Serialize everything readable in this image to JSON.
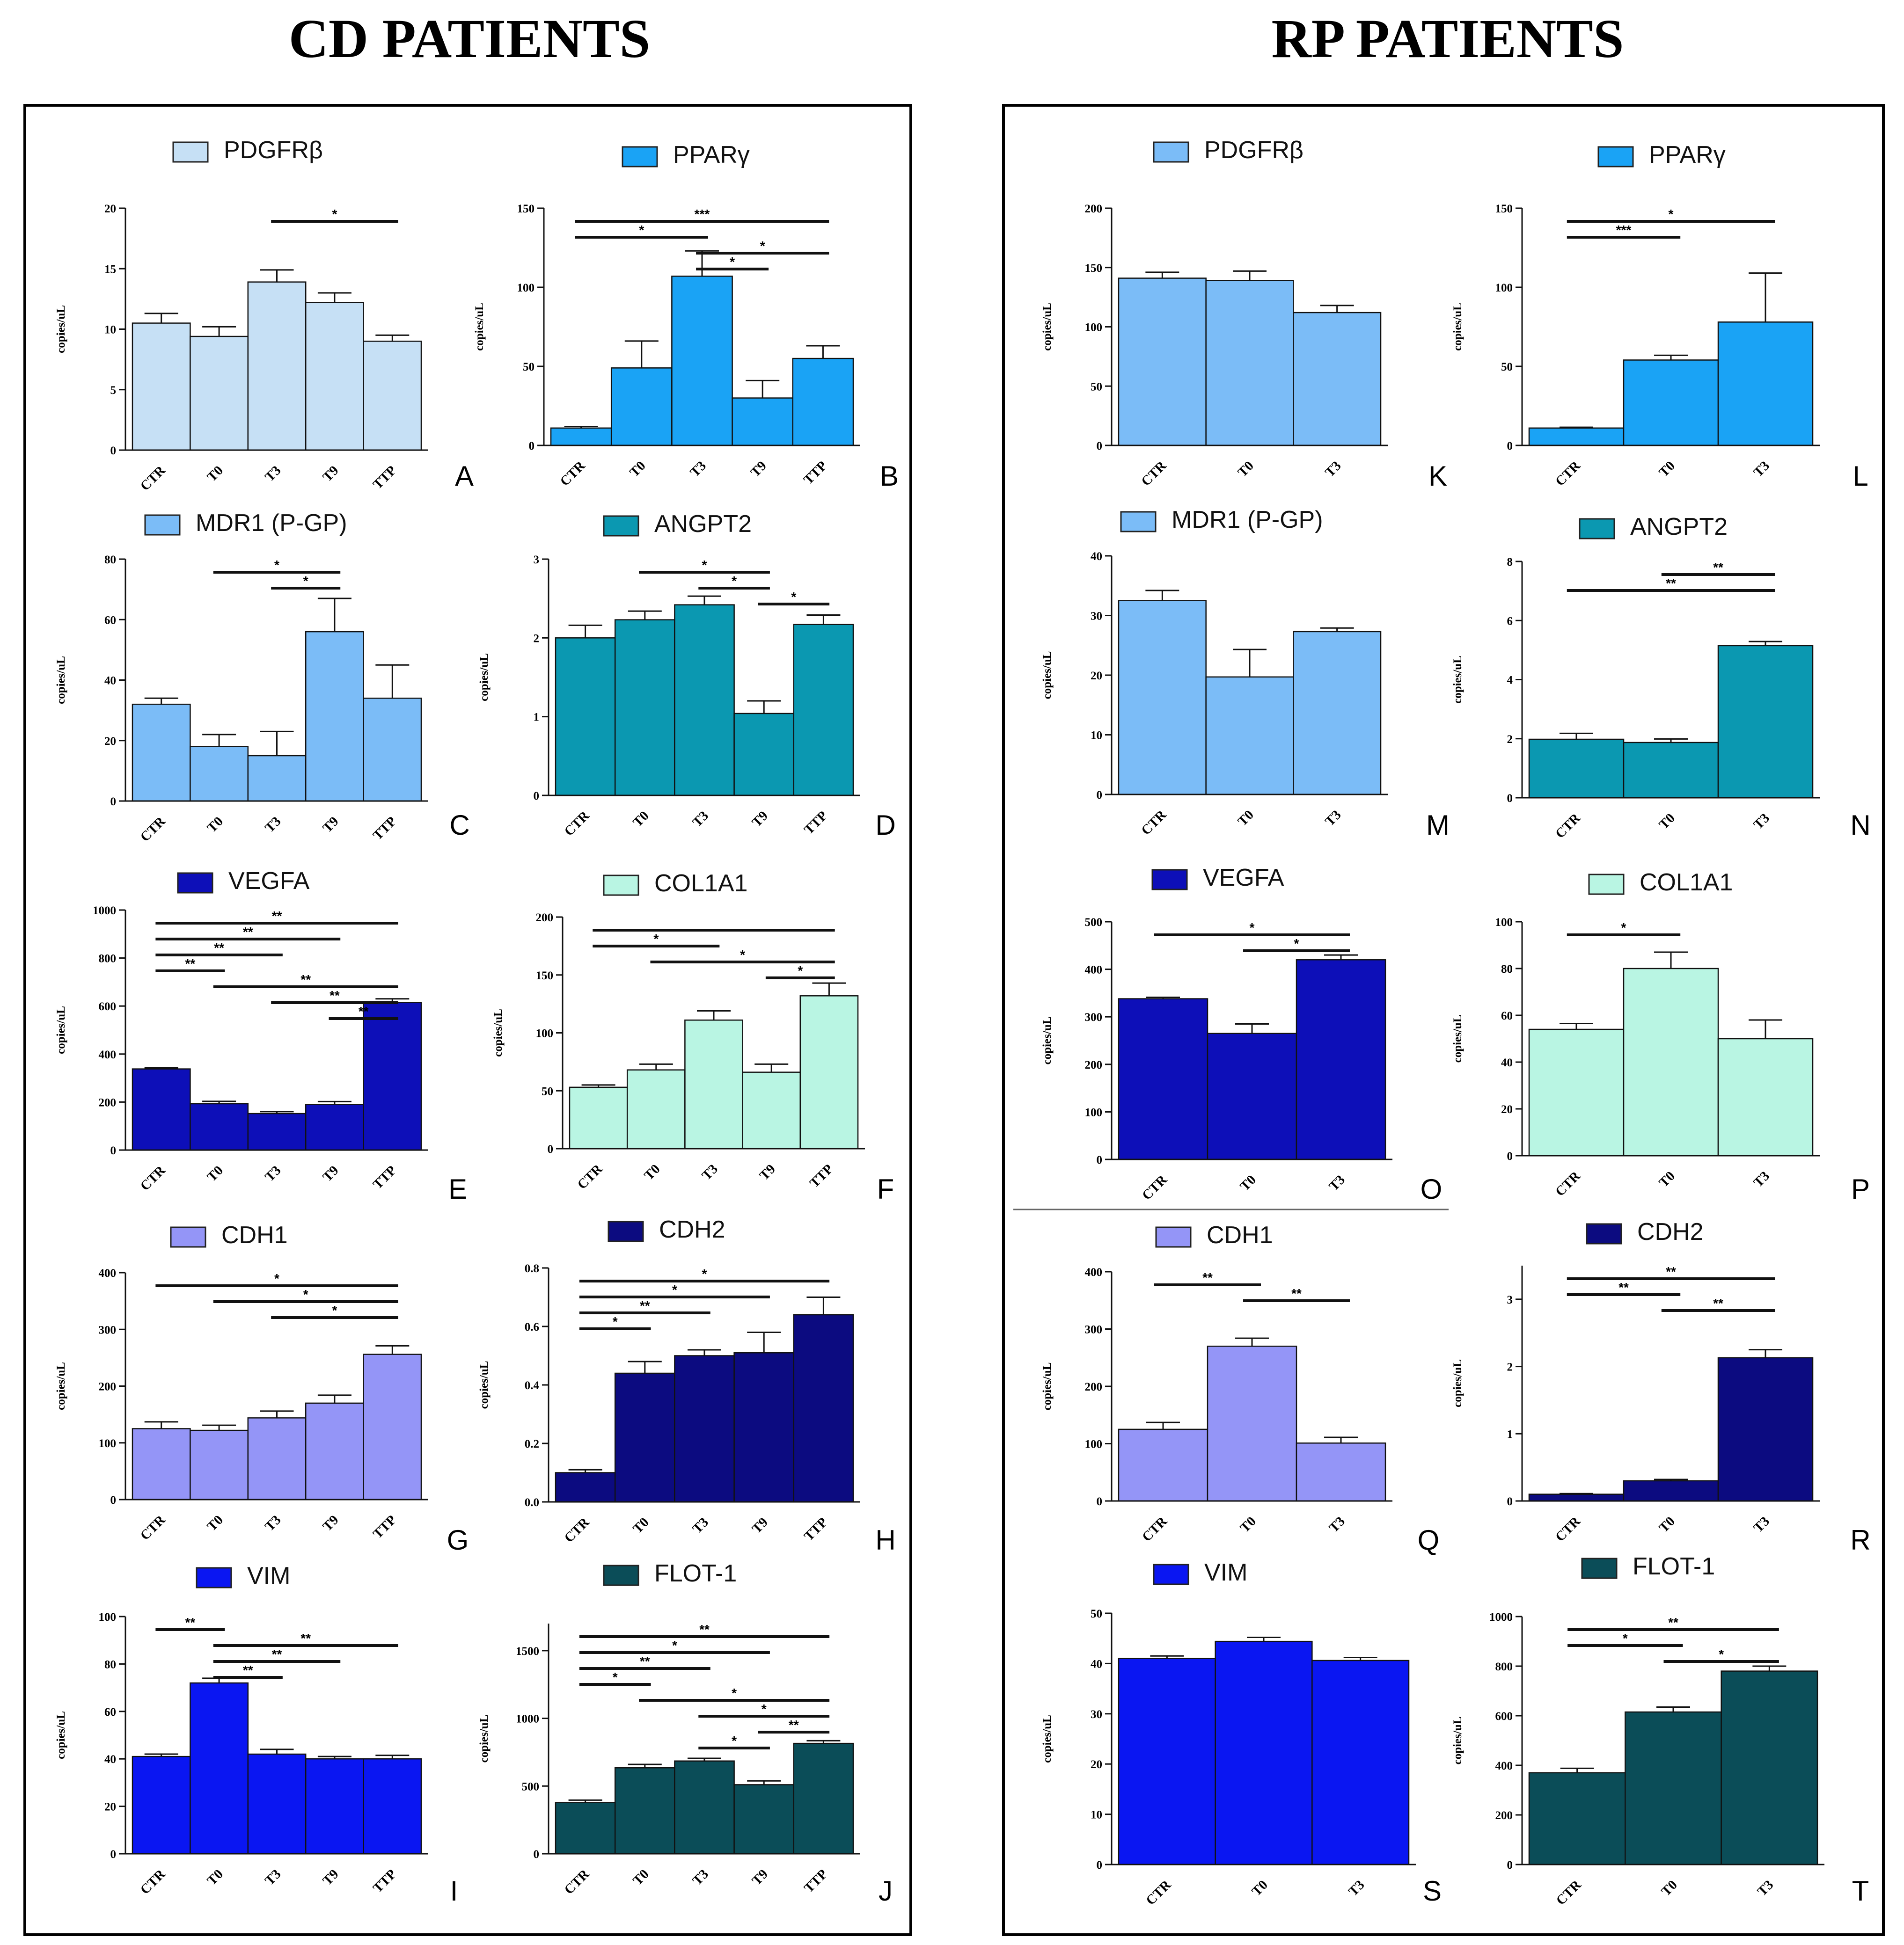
{
  "headings": {
    "left": "CD PATIENTS",
    "right": "RP PATIENTS"
  },
  "y_axis_label": "copies/uL",
  "chart_data": [
    {
      "id": "A",
      "type": "bar",
      "title": "PDGFRβ",
      "color": "#c6e0f5",
      "categories": [
        "CTR",
        "T0",
        "T3",
        "T9",
        "TTP"
      ],
      "values": [
        10.5,
        9.4,
        13.9,
        12.2,
        9.0
      ],
      "errors": [
        0.8,
        0.8,
        1.0,
        0.8,
        0.5
      ],
      "ylim": [
        0,
        20
      ],
      "yticks": [
        0,
        5,
        10,
        15,
        20
      ],
      "ylabel": "copies/uL",
      "sig": [
        {
          "from": 2,
          "to": 4,
          "label": "*"
        }
      ]
    },
    {
      "id": "B",
      "type": "bar",
      "title": "PPARγ",
      "color": "#1aa3f5",
      "categories": [
        "CTR",
        "T0",
        "T3",
        "T9",
        "TTP"
      ],
      "values": [
        11,
        49,
        107,
        30,
        55
      ],
      "errors": [
        1,
        17,
        16,
        11,
        8
      ],
      "ylim": [
        0,
        150
      ],
      "yticks": [
        0,
        50,
        100,
        150
      ],
      "ylabel": "copies/uL",
      "sig": [
        {
          "from": 0,
          "to": 4,
          "label": "***"
        },
        {
          "from": 0,
          "to": 2,
          "label": "*"
        },
        {
          "from": 2,
          "to": 4,
          "label": "*"
        },
        {
          "from": 2,
          "to": 3,
          "label": "*"
        }
      ]
    },
    {
      "id": "C",
      "type": "bar",
      "title": "MDR1 (P-GP)",
      "color": "#7bbcf7",
      "categories": [
        "CTR",
        "T0",
        "T3",
        "T9",
        "TTP"
      ],
      "values": [
        32,
        18,
        15,
        56,
        34
      ],
      "errors": [
        2,
        4,
        8,
        11,
        11
      ],
      "ylim": [
        0,
        80
      ],
      "yticks": [
        0,
        20,
        40,
        60,
        80
      ],
      "ylabel": "copies/uL",
      "sig": [
        {
          "from": 1,
          "to": 3,
          "label": "*"
        },
        {
          "from": 2,
          "to": 3,
          "label": "*"
        }
      ]
    },
    {
      "id": "D",
      "type": "bar",
      "title": "ANGPT2",
      "color": "#0b98b1",
      "categories": [
        "CTR",
        "T0",
        "T3",
        "T9",
        "TTP"
      ],
      "values": [
        2.0,
        2.23,
        2.42,
        1.04,
        2.17
      ],
      "errors": [
        0.16,
        0.11,
        0.11,
        0.16,
        0.12
      ],
      "ylim": [
        0,
        3
      ],
      "yticks": [
        0,
        1,
        2,
        3
      ],
      "ylabel": "copies/uL",
      "sig": [
        {
          "from": 1,
          "to": 3,
          "label": "*"
        },
        {
          "from": 2,
          "to": 3,
          "label": "*"
        },
        {
          "from": 3,
          "to": 4,
          "label": "*"
        }
      ]
    },
    {
      "id": "E",
      "type": "bar",
      "title": "VEGFA",
      "color": "#0d0fb8",
      "categories": [
        "CTR",
        "T0",
        "T3",
        "T9",
        "TTP"
      ],
      "values": [
        338,
        193,
        152,
        190,
        615
      ],
      "errors": [
        5,
        10,
        8,
        12,
        15
      ],
      "ylim": [
        0,
        1000
      ],
      "yticks": [
        0,
        200,
        400,
        600,
        800,
        1000
      ],
      "ylabel": "copies/uL",
      "sig": [
        {
          "from": 0,
          "to": 4,
          "label": "**"
        },
        {
          "from": 0,
          "to": 3,
          "label": "**"
        },
        {
          "from": 0,
          "to": 2,
          "label": "**"
        },
        {
          "from": 0,
          "to": 1,
          "label": "**"
        },
        {
          "from": 1,
          "to": 4,
          "label": "**"
        },
        {
          "from": 2,
          "to": 4,
          "label": "**"
        },
        {
          "from": 3,
          "to": 4,
          "label": "**"
        }
      ]
    },
    {
      "id": "F",
      "type": "bar",
      "title": "COL1A1",
      "color": "#b9f5e3",
      "categories": [
        "CTR",
        "T0",
        "T3",
        "T9",
        "TTP"
      ],
      "values": [
        53,
        68,
        111,
        66,
        132
      ],
      "errors": [
        2,
        5,
        8,
        7,
        11
      ],
      "ylim": [
        0,
        200
      ],
      "yticks": [
        0,
        50,
        100,
        150,
        200
      ],
      "ylabel": "copies/uL",
      "sig": [
        {
          "from": 0,
          "to": 4,
          "label": ""
        },
        {
          "from": 0,
          "to": 2,
          "label": "*"
        },
        {
          "from": 1,
          "to": 4,
          "label": "*"
        },
        {
          "from": 3,
          "to": 4,
          "label": "*"
        }
      ]
    },
    {
      "id": "G",
      "type": "bar",
      "title": "CDH1",
      "color": "#9495f7",
      "categories": [
        "CTR",
        "T0",
        "T3",
        "T9",
        "TTP"
      ],
      "values": [
        125,
        122,
        144,
        170,
        256
      ],
      "errors": [
        12,
        9,
        12,
        14,
        15
      ],
      "ylim": [
        0,
        400
      ],
      "yticks": [
        0,
        100,
        200,
        300,
        400
      ],
      "ylabel": "copies/uL",
      "sig": [
        {
          "from": 0,
          "to": 4,
          "label": "*"
        },
        {
          "from": 1,
          "to": 4,
          "label": "*"
        },
        {
          "from": 2,
          "to": 4,
          "label": "*"
        }
      ]
    },
    {
      "id": "H",
      "type": "bar",
      "title": "CDH2",
      "color": "#0c0b80",
      "categories": [
        "CTR",
        "T0",
        "T3",
        "T9",
        "TTP"
      ],
      "values": [
        0.1,
        0.44,
        0.5,
        0.51,
        0.64
      ],
      "errors": [
        0.01,
        0.04,
        0.02,
        0.07,
        0.06
      ],
      "ylim": [
        0,
        0.8
      ],
      "yticks": [
        0.0,
        0.2,
        0.4,
        0.6,
        0.8
      ],
      "ylabel": "copies/uL",
      "sig": [
        {
          "from": 0,
          "to": 4,
          "label": "*"
        },
        {
          "from": 0,
          "to": 3,
          "label": "*"
        },
        {
          "from": 0,
          "to": 2,
          "label": "**"
        },
        {
          "from": 0,
          "to": 1,
          "label": "*"
        }
      ]
    },
    {
      "id": "I",
      "type": "bar",
      "title": "VIM",
      "color": "#0a16f2",
      "categories": [
        "CTR",
        "T0",
        "T3",
        "T9",
        "TTP"
      ],
      "values": [
        41,
        72,
        42,
        40,
        40
      ],
      "errors": [
        1,
        2,
        2,
        1,
        1.5
      ],
      "ylim": [
        0,
        100
      ],
      "yticks": [
        0,
        20,
        40,
        60,
        80,
        100
      ],
      "ylabel": "copies/uL",
      "sig": [
        {
          "from": 0,
          "to": 1,
          "label": "**"
        },
        {
          "from": 1,
          "to": 4,
          "label": "**"
        },
        {
          "from": 1,
          "to": 3,
          "label": "**"
        },
        {
          "from": 1,
          "to": 2,
          "label": "**"
        }
      ]
    },
    {
      "id": "J",
      "type": "bar",
      "title": "FLOT-1",
      "color": "#0b4d58",
      "categories": [
        "CTR",
        "T0",
        "T3",
        "T9",
        "TTP"
      ],
      "values": [
        378,
        635,
        685,
        510,
        815
      ],
      "errors": [
        18,
        25,
        20,
        28,
        20
      ],
      "ylim": [
        0,
        1700
      ],
      "yticks": [
        0,
        500,
        1000,
        1500
      ],
      "ylabel": "copies/uL",
      "sig": [
        {
          "from": 0,
          "to": 4,
          "label": "**"
        },
        {
          "from": 0,
          "to": 3,
          "label": "*"
        },
        {
          "from": 0,
          "to": 2,
          "label": "**"
        },
        {
          "from": 0,
          "to": 1,
          "label": "*"
        },
        {
          "from": 1,
          "to": 4,
          "label": "*"
        },
        {
          "from": 2,
          "to": 4,
          "label": "*"
        },
        {
          "from": 3,
          "to": 4,
          "label": "**"
        },
        {
          "from": 2,
          "to": 3,
          "label": "*"
        }
      ]
    },
    {
      "id": "K",
      "type": "bar",
      "title": "PDGFRβ",
      "color": "#7bbcf7",
      "categories": [
        "CTR",
        "T0",
        "T3"
      ],
      "values": [
        141,
        139,
        112
      ],
      "errors": [
        5,
        8,
        6
      ],
      "ylim": [
        0,
        200
      ],
      "yticks": [
        0,
        50,
        100,
        150,
        200
      ],
      "ylabel": "copies/uL",
      "sig": []
    },
    {
      "id": "L",
      "type": "bar",
      "title": "PPARγ",
      "color": "#1aa3f5",
      "categories": [
        "CTR",
        "T0",
        "T3"
      ],
      "values": [
        11,
        54,
        78
      ],
      "errors": [
        0.5,
        3,
        31
      ],
      "ylim": [
        0,
        150
      ],
      "yticks": [
        0,
        50,
        100,
        150
      ],
      "ylabel": "copies/uL",
      "sig": [
        {
          "from": 0,
          "to": 2,
          "label": "*"
        },
        {
          "from": 0,
          "to": 1,
          "label": "***"
        }
      ]
    },
    {
      "id": "M",
      "type": "bar",
      "title": "MDR1 (P-GP)",
      "color": "#7bbcf7",
      "categories": [
        "CTR",
        "T0",
        "T3"
      ],
      "values": [
        32.5,
        19.7,
        27.3
      ],
      "errors": [
        1.7,
        4.6,
        0.6
      ],
      "ylim": [
        0,
        40
      ],
      "yticks": [
        0,
        10,
        20,
        30,
        40
      ],
      "ylabel": "copies/uL",
      "sig": []
    },
    {
      "id": "N",
      "type": "bar",
      "title": "ANGPT2",
      "color": "#0b98b1",
      "categories": [
        "CTR",
        "T0",
        "T3"
      ],
      "values": [
        1.98,
        1.87,
        5.15
      ],
      "errors": [
        0.2,
        0.12,
        0.14
      ],
      "ylim": [
        0,
        8
      ],
      "yticks": [
        0,
        2,
        4,
        6,
        8
      ],
      "ylabel": "copies/uL",
      "sig": [
        {
          "from": 1,
          "to": 2,
          "label": "**"
        },
        {
          "from": 0,
          "to": 2,
          "label": "**"
        }
      ]
    },
    {
      "id": "O",
      "type": "bar",
      "title": "VEGFA",
      "color": "#0d0fb8",
      "categories": [
        "CTR",
        "T0",
        "T3"
      ],
      "values": [
        338,
        265,
        420
      ],
      "errors": [
        3,
        20,
        10
      ],
      "ylim": [
        0,
        500
      ],
      "yticks": [
        0,
        100,
        200,
        300,
        400,
        500
      ],
      "ylabel": "copies/uL",
      "sig": [
        {
          "from": 0,
          "to": 2,
          "label": "*"
        },
        {
          "from": 1,
          "to": 2,
          "label": "*"
        }
      ]
    },
    {
      "id": "P",
      "type": "bar",
      "title": "COL1A1",
      "color": "#b9f5e3",
      "categories": [
        "CTR",
        "T0",
        "T3"
      ],
      "values": [
        54,
        80,
        50
      ],
      "errors": [
        2.5,
        7,
        8
      ],
      "ylim": [
        0,
        100
      ],
      "yticks": [
        0,
        20,
        40,
        60,
        80,
        100
      ],
      "ylabel": "copies/uL",
      "sig": [
        {
          "from": 0,
          "to": 1,
          "label": "*"
        }
      ]
    },
    {
      "id": "Q",
      "type": "bar",
      "title": "CDH1",
      "color": "#9495f7",
      "categories": [
        "CTR",
        "T0",
        "T3"
      ],
      "values": [
        125,
        270,
        101
      ],
      "errors": [
        12,
        14,
        10
      ],
      "ylim": [
        0,
        400
      ],
      "yticks": [
        0,
        100,
        200,
        300,
        400
      ],
      "ylabel": "copies/uL",
      "sig": [
        {
          "from": 0,
          "to": 1,
          "label": "**"
        },
        {
          "from": 1,
          "to": 2,
          "label": "**"
        }
      ]
    },
    {
      "id": "R",
      "type": "bar",
      "title": "CDH2",
      "color": "#0c0b80",
      "categories": [
        "CTR",
        "T0",
        "T3"
      ],
      "values": [
        0.1,
        0.3,
        2.13
      ],
      "errors": [
        0.01,
        0.02,
        0.12
      ],
      "ylim": [
        0,
        3.5
      ],
      "yticks": [
        0,
        1,
        2,
        3
      ],
      "ylabel": "copies/uL",
      "sig": [
        {
          "from": 0,
          "to": 2,
          "label": "**"
        },
        {
          "from": 0,
          "to": 1,
          "label": "**"
        },
        {
          "from": 1,
          "to": 2,
          "label": "**"
        }
      ]
    },
    {
      "id": "S",
      "type": "bar",
      "title": "VIM",
      "color": "#0a16f2",
      "categories": [
        "CTR",
        "T0",
        "T3"
      ],
      "values": [
        41,
        44.4,
        40.6
      ],
      "errors": [
        0.5,
        0.8,
        0.6
      ],
      "ylim": [
        0,
        50
      ],
      "yticks": [
        0,
        10,
        20,
        30,
        40,
        50
      ],
      "ylabel": "copies/uL",
      "sig": []
    },
    {
      "id": "T",
      "type": "bar",
      "title": "FLOT-1",
      "color": "#0b4d58",
      "categories": [
        "CTR",
        "T0",
        "T3"
      ],
      "values": [
        370,
        615,
        780
      ],
      "errors": [
        18,
        20,
        20
      ],
      "ylim": [
        0,
        1000
      ],
      "yticks": [
        0,
        200,
        400,
        600,
        800,
        1000
      ],
      "ylabel": "copies/uL",
      "sig": [
        {
          "from": 0,
          "to": 2,
          "label": "**"
        },
        {
          "from": 0,
          "to": 1,
          "label": "*"
        },
        {
          "from": 1,
          "to": 2,
          "label": "*"
        }
      ]
    }
  ]
}
